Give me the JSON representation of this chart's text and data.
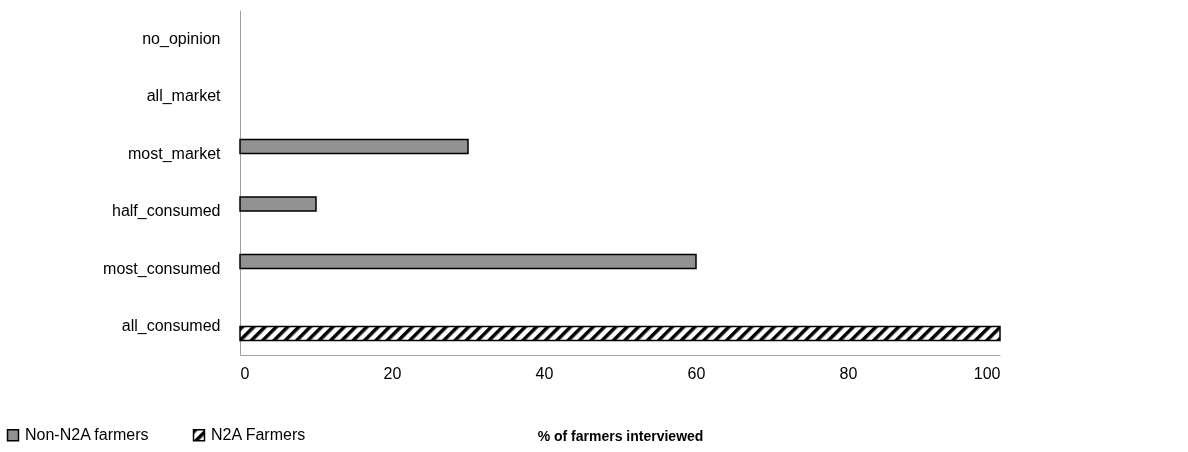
{
  "chart_data": {
    "type": "bar",
    "orientation": "horizontal",
    "xlabel": "% of farmers interviewed",
    "categories": [
      "no_opinion",
      "all_market",
      "most_market",
      "half_consumed",
      "most_consumed",
      "all_consumed"
    ],
    "series": [
      {
        "name": "Non-N2A farmers",
        "color": "#929292",
        "values": [
          null,
          null,
          30,
          10,
          60,
          null
        ]
      },
      {
        "name": "N2A Farmers",
        "color": "#000000",
        "values": [
          null,
          null,
          null,
          null,
          null,
          100
        ]
      }
    ],
    "xlim": [
      0,
      100
    ],
    "xticks": [
      0,
      20,
      40,
      60,
      80,
      100
    ],
    "grid": false,
    "legend": "bottom left"
  }
}
